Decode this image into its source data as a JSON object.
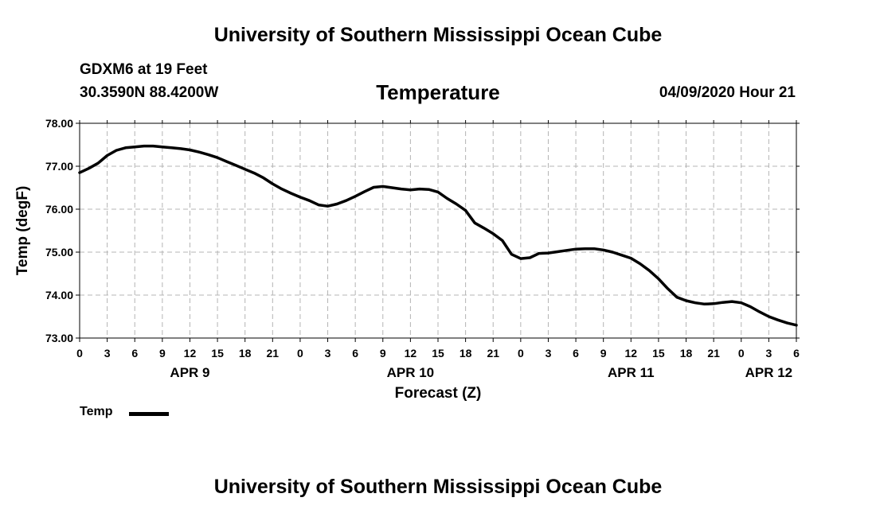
{
  "header": {
    "title": "University of Southern Mississippi Ocean Cube",
    "station": "GDXM6 at 19 Feet",
    "coordinates": "30.3590N 88.4200W",
    "variable": "Temperature",
    "datetime": "04/09/2020 Hour 21"
  },
  "footer": {
    "title": "University of Southern Mississippi Ocean Cube"
  },
  "legend": {
    "label": "Temp",
    "color": "#000000"
  },
  "chart_data": {
    "type": "line",
    "title": "Temperature",
    "xlabel": "Forecast (Z)",
    "ylabel": "Temp (degF)",
    "ylim": [
      73.0,
      78.0
    ],
    "xlim": [
      0,
      78
    ],
    "grid": true,
    "y_ticks": [
      "73.00",
      "74.00",
      "75.00",
      "76.00",
      "77.00",
      "78.00"
    ],
    "y_tick_values": [
      73,
      74,
      75,
      76,
      77,
      78
    ],
    "x_ticks": [
      {
        "hours": 0,
        "label": "0"
      },
      {
        "hours": 3,
        "label": "3"
      },
      {
        "hours": 6,
        "label": "6"
      },
      {
        "hours": 9,
        "label": "9"
      },
      {
        "hours": 12,
        "label": "12"
      },
      {
        "hours": 15,
        "label": "15"
      },
      {
        "hours": 18,
        "label": "18"
      },
      {
        "hours": 21,
        "label": "21"
      },
      {
        "hours": 24,
        "label": "0"
      },
      {
        "hours": 27,
        "label": "3"
      },
      {
        "hours": 30,
        "label": "6"
      },
      {
        "hours": 33,
        "label": "9"
      },
      {
        "hours": 36,
        "label": "12"
      },
      {
        "hours": 39,
        "label": "15"
      },
      {
        "hours": 42,
        "label": "18"
      },
      {
        "hours": 45,
        "label": "21"
      },
      {
        "hours": 48,
        "label": "0"
      },
      {
        "hours": 51,
        "label": "3"
      },
      {
        "hours": 54,
        "label": "6"
      },
      {
        "hours": 57,
        "label": "9"
      },
      {
        "hours": 60,
        "label": "12"
      },
      {
        "hours": 63,
        "label": "15"
      },
      {
        "hours": 66,
        "label": "18"
      },
      {
        "hours": 69,
        "label": "21"
      },
      {
        "hours": 72,
        "label": "0"
      },
      {
        "hours": 75,
        "label": "3"
      },
      {
        "hours": 78,
        "label": "6"
      }
    ],
    "date_labels": [
      {
        "hours": 12,
        "label": "APR 9"
      },
      {
        "hours": 36,
        "label": "APR 10"
      },
      {
        "hours": 60,
        "label": "APR 11"
      },
      {
        "hours": 75,
        "label": "APR 12"
      }
    ],
    "series": [
      {
        "name": "Temp",
        "x": [
          0,
          1,
          2,
          3,
          4,
          5,
          6,
          7,
          8,
          9,
          10,
          11,
          12,
          13,
          14,
          15,
          16,
          17,
          18,
          19,
          20,
          21,
          22,
          23,
          24,
          25,
          26,
          27,
          28,
          29,
          30,
          31,
          32,
          33,
          34,
          35,
          36,
          37,
          38,
          39,
          40,
          41,
          42,
          43,
          44,
          45,
          46,
          47,
          48,
          49,
          50,
          51,
          52,
          53,
          54,
          55,
          56,
          57,
          58,
          59,
          60,
          61,
          62,
          63,
          64,
          65,
          66,
          67,
          68,
          69,
          70,
          71,
          72,
          73,
          74,
          75,
          76,
          77,
          78
        ],
        "values": [
          76.85,
          76.95,
          77.07,
          77.25,
          77.37,
          77.43,
          77.45,
          77.47,
          77.47,
          77.45,
          77.43,
          77.41,
          77.38,
          77.33,
          77.27,
          77.2,
          77.11,
          77.02,
          76.93,
          76.84,
          76.73,
          76.59,
          76.47,
          76.37,
          76.28,
          76.2,
          76.1,
          76.07,
          76.12,
          76.2,
          76.3,
          76.41,
          76.51,
          76.53,
          76.5,
          76.47,
          76.45,
          76.47,
          76.46,
          76.4,
          76.25,
          76.12,
          75.97,
          75.68,
          75.56,
          75.43,
          75.27,
          74.95,
          74.85,
          74.87,
          74.97,
          74.98,
          75.01,
          75.04,
          75.07,
          75.08,
          75.08,
          75.05,
          75.0,
          74.93,
          74.86,
          74.73,
          74.57,
          74.38,
          74.15,
          73.95,
          73.87,
          73.82,
          73.79,
          73.8,
          73.83,
          73.85,
          73.82,
          73.73,
          73.61,
          73.5,
          73.42,
          73.35,
          73.3
        ]
      }
    ]
  }
}
